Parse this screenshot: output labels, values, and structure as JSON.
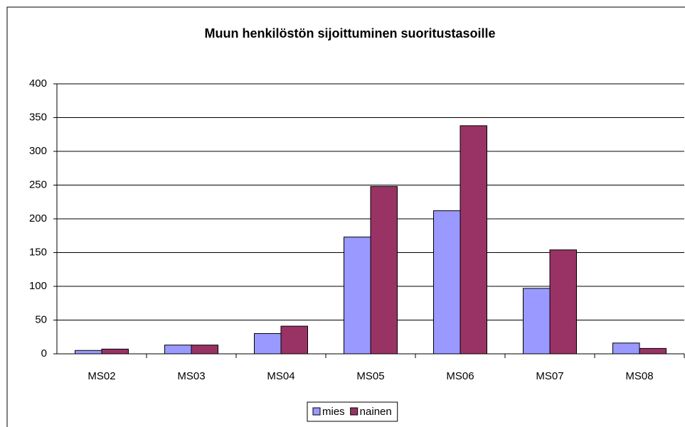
{
  "chart_data": {
    "type": "bar",
    "title": "Muun henkilöstön sijoittuminen suoritustasoille",
    "categories": [
      "MS02",
      "MS03",
      "MS04",
      "MS05",
      "MS06",
      "MS07",
      "MS08"
    ],
    "series": [
      {
        "name": "mies",
        "color": "#9999ff",
        "values": [
          5,
          13,
          30,
          173,
          212,
          97,
          16
        ]
      },
      {
        "name": "nainen",
        "color": "#993366",
        "values": [
          7,
          13,
          41,
          248,
          338,
          154,
          8
        ]
      }
    ],
    "ylim": [
      0,
      400
    ],
    "yticks": [
      0,
      50,
      100,
      150,
      200,
      250,
      300,
      350,
      400
    ],
    "grid": true,
    "legend": "bottom"
  }
}
